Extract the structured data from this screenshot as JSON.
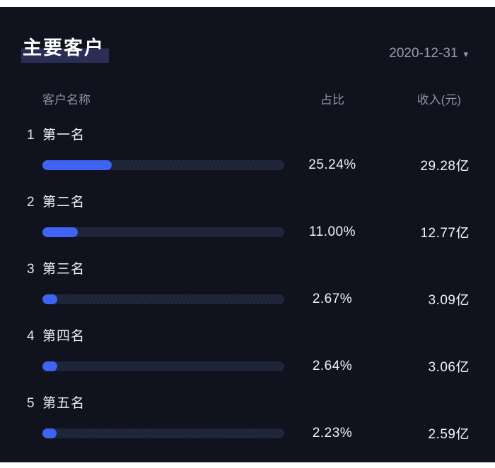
{
  "panel": {
    "title": "主要客户",
    "date": "2020-12-31",
    "columns": {
      "name": "客户名称",
      "ratio": "占比",
      "revenue": "收入(元)"
    }
  },
  "rows": [
    {
      "rank": "1",
      "name": "第一名",
      "percent": "25.24%",
      "percent_value": 25.24,
      "revenue": "29.28亿"
    },
    {
      "rank": "2",
      "name": "第二名",
      "percent": "11.00%",
      "percent_value": 11.0,
      "revenue": "12.77亿"
    },
    {
      "rank": "3",
      "name": "第三名",
      "percent": "2.67%",
      "percent_value": 2.67,
      "revenue": "3.09亿"
    },
    {
      "rank": "4",
      "name": "第四名",
      "percent": "2.64%",
      "percent_value": 2.64,
      "revenue": "3.06亿"
    },
    {
      "rank": "5",
      "name": "第五名",
      "percent": "2.23%",
      "percent_value": 2.23,
      "revenue": "2.59亿"
    }
  ],
  "colors": {
    "panel_bg": "#10121d",
    "bar_fill": "#3f63f2",
    "bar_track": "#1d2336",
    "title_highlight": "#2a2e55",
    "muted_text": "#8e93a6"
  },
  "chart_data": {
    "type": "bar",
    "title": "主要客户",
    "subtitle": "2020-12-31",
    "orientation": "horizontal",
    "categories": [
      "第一名",
      "第二名",
      "第三名",
      "第四名",
      "第五名"
    ],
    "series": [
      {
        "name": "占比(%)",
        "values": [
          25.24,
          11.0,
          2.67,
          2.64,
          2.23
        ]
      },
      {
        "name": "收入(亿元)",
        "values": [
          29.28,
          12.77,
          3.09,
          3.06,
          2.59
        ]
      }
    ],
    "xlabel": "占比",
    "ylabel": "客户名称",
    "xlim": [
      0,
      100
    ],
    "grid": false,
    "legend_position": "none",
    "data_labels": [
      "25.24% / 29.28亿",
      "11.00% / 12.77亿",
      "2.67% / 3.09亿",
      "2.64% / 3.06亿",
      "2.23% / 2.59亿"
    ]
  }
}
